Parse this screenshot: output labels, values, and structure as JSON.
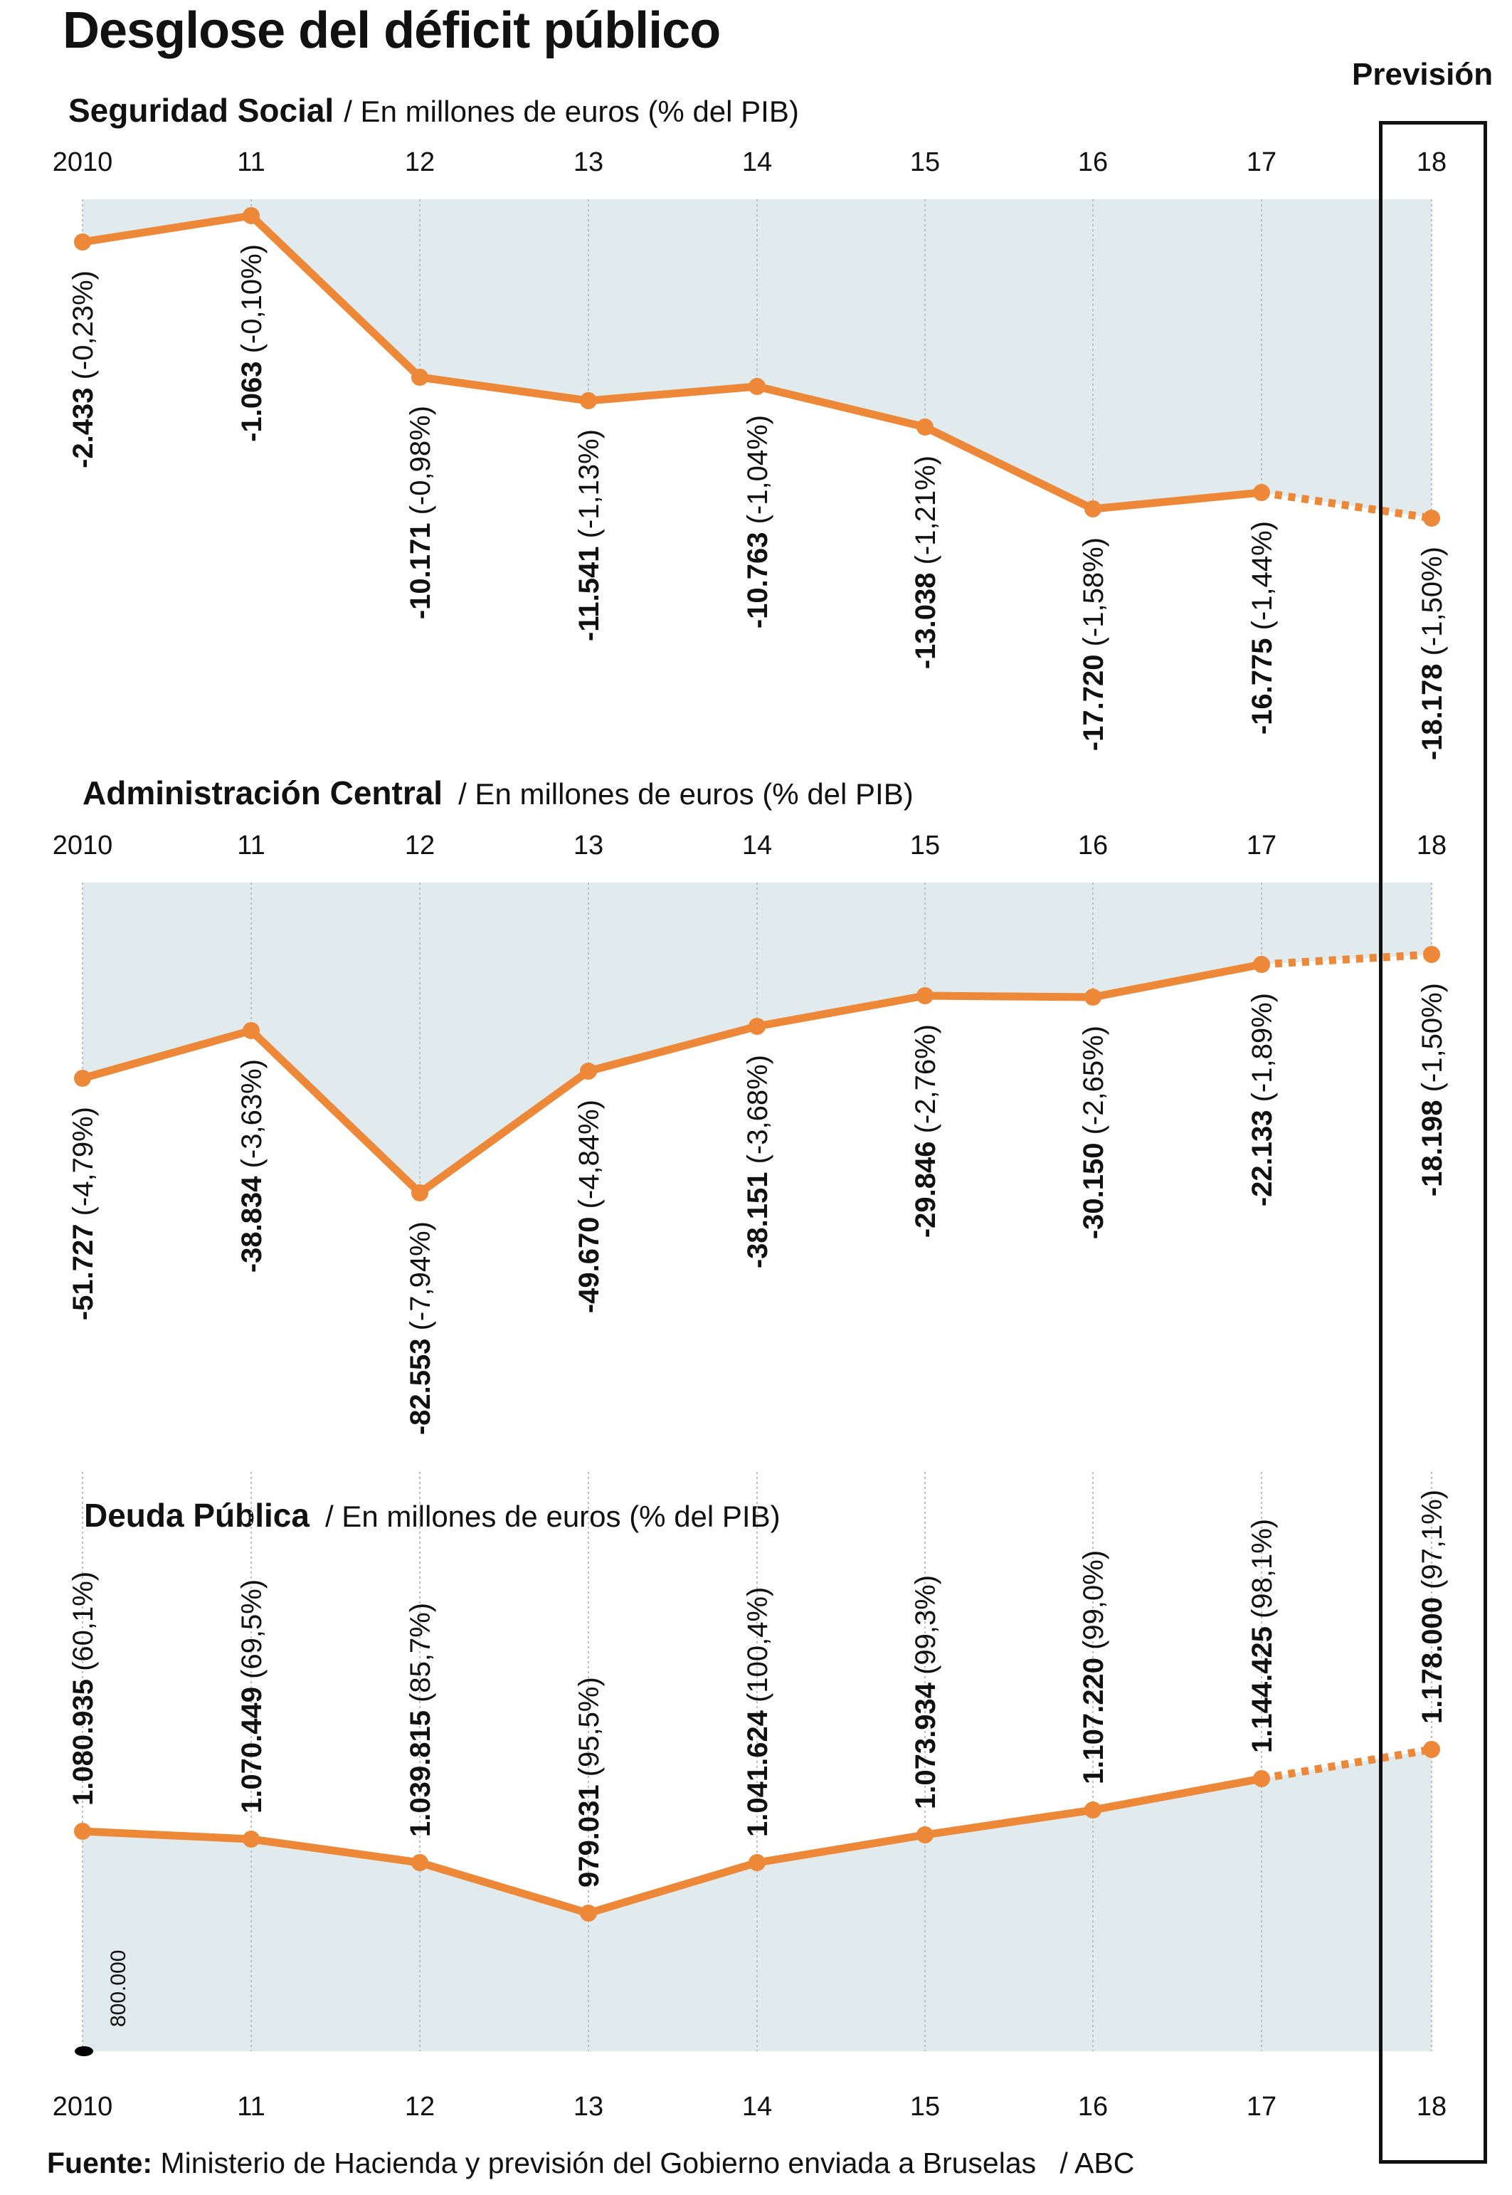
{
  "title": "Desglose del déficit público",
  "forecast_label": "Previsión",
  "source": {
    "label": "Fuente:",
    "text": "Ministerio de Hacienda y previsión del Gobierno enviada a Bruselas",
    "credit": "/ ABC"
  },
  "colors": {
    "line": "#ec8838",
    "fill": "#e1ebee",
    "grid": "#b7c0c4",
    "text": "#111111"
  },
  "chart_data": [
    {
      "type": "line",
      "title": "Seguridad Social",
      "subtitle": "/ En millones de euros (% del PIB)",
      "categories": [
        "2010",
        "11",
        "12",
        "13",
        "14",
        "15",
        "16",
        "17",
        "18"
      ],
      "series": [
        {
          "values": [
            -2433,
            -1063,
            -10171,
            -11541,
            -10763,
            -13038,
            -17720,
            -16775,
            -18178
          ]
        }
      ],
      "value_labels": [
        "-2.433",
        "-1.063",
        "-10.171",
        "-11.541",
        "-10.763",
        "-13.038",
        "-17.720",
        "-16.775",
        "-18.178"
      ],
      "pct_labels": [
        "(-0,23%)",
        "(-0,10%)",
        "(-0,98%)",
        "(-1,13%)",
        "(-1,04%)",
        "(-1,21%)",
        "(-1,58%)",
        "(-1,44%)",
        "(-1,50%)"
      ],
      "forecast_from_index": 7,
      "ylim": [
        -20000,
        0
      ]
    },
    {
      "type": "line",
      "title": "Administración Central",
      "subtitle": "/ En millones de euros (% del PIB)",
      "categories": [
        "2010",
        "11",
        "12",
        "13",
        "14",
        "15",
        "16",
        "17",
        "18"
      ],
      "series": [
        {
          "values": [
            -51727,
            -38834,
            -82553,
            -49670,
            -38151,
            -29846,
            -30150,
            -22133,
            -18198
          ]
        }
      ],
      "value_labels": [
        "-51.727",
        "-38.834",
        "-82.553",
        "-49.670",
        "-38.151",
        "-29.846",
        "-30.150",
        "-22.133",
        "-18.198"
      ],
      "pct_labels": [
        "(-4,79%)",
        "(-3,63%)",
        "(-7,94%)",
        "(-4,84%)",
        "(-3,68%)",
        "(-2,76%)",
        "(-2,65%)",
        "(-1,89%)",
        "(-1,50%)"
      ],
      "forecast_from_index": 7,
      "ylim": [
        -100000,
        0
      ]
    },
    {
      "type": "line",
      "title": "Deuda Pública",
      "subtitle": "/ En millones de euros (% del PIB)",
      "categories": [
        "2010",
        "11",
        "12",
        "13",
        "14",
        "15",
        "16",
        "17",
        "18"
      ],
      "series": [
        {
          "values": [
            1080935,
            1070449,
            1039815,
            979031,
            1041624,
            1073934,
            1107220,
            1144425,
            1178000
          ]
        }
      ],
      "value_labels": [
        "1.080.935",
        "1.070.449",
        "1.039.815",
        "979.031",
        "1.041.624",
        "1.073.934",
        "1.107.220",
        "1.144.425",
        "1.178.000"
      ],
      "pct_labels": [
        "(60,1%)",
        "(69,5%)",
        "(85,7%)",
        "(95,5%)",
        "(100,4%)",
        "(99,3%)",
        "(99,0%)",
        "(98,1%)",
        "(97,1%)"
      ],
      "forecast_from_index": 7,
      "ylim": [
        800000,
        1560000
      ],
      "baseline_label": "800.000"
    }
  ]
}
